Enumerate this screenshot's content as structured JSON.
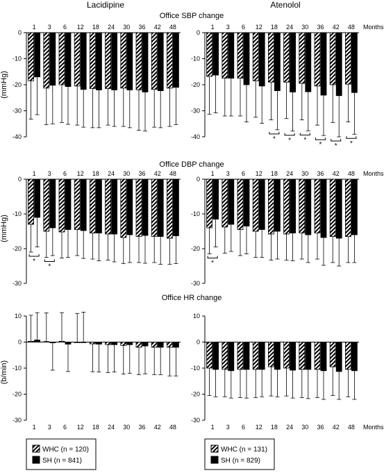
{
  "figure": {
    "columns": [
      "Lacidipine",
      "Atenolol"
    ],
    "x_unit_label": "Months",
    "whc_pattern_color": "#000000",
    "sh_color": "#000000"
  },
  "panels": [
    {
      "title": "Office SBP change",
      "ylabel": "(mmHg)"
    },
    {
      "title": "Office DBP change",
      "ylabel": "(mmHg)"
    },
    {
      "title": "Office HR change",
      "ylabel": "(b/min)"
    }
  ],
  "legends": [
    {
      "whc": "WHC (n = 120)",
      "sh": "SH (n = 841)"
    },
    {
      "whc": "WHC (n = 131)",
      "sh": "SH (n = 829)"
    }
  ],
  "chart_data": [
    {
      "type": "bar",
      "title": "Office SBP change",
      "drug": "Lacidipine",
      "categories": [
        "1",
        "3",
        "6",
        "12",
        "18",
        "24",
        "30",
        "36",
        "42",
        "48"
      ],
      "xlabel": "Months",
      "ylabel": "(mmHg)",
      "ylim": [
        -40,
        0
      ],
      "yticks": [
        0,
        -10,
        -20,
        -30,
        -40
      ],
      "series": [
        {
          "name": "WHC (n = 120)",
          "values": [
            -18.5,
            -21.3,
            -20.0,
            -20.5,
            -21.5,
            -21.5,
            -21.3,
            -22.0,
            -21.8,
            -21.3
          ],
          "sd": [
            14.7,
            14.0,
            14.5,
            15.0,
            15.0,
            14.0,
            14.7,
            15.5,
            14.5,
            14.7
          ]
        },
        {
          "name": "SH (n = 841)",
          "values": [
            -17.0,
            -20.2,
            -20.7,
            -21.8,
            -22.0,
            -22.0,
            -22.0,
            -22.8,
            -22.3,
            -21.0
          ],
          "sd": [
            14.5,
            14.8,
            14.5,
            14.5,
            14.5,
            14.0,
            14.5,
            15.0,
            14.2,
            14.3
          ]
        }
      ],
      "significant": []
    },
    {
      "type": "bar",
      "title": "Office SBP change",
      "drug": "Atenolol",
      "categories": [
        "1",
        "3",
        "6",
        "12",
        "18",
        "24",
        "30",
        "36",
        "42",
        "48"
      ],
      "xlabel": "Months",
      "ylabel": "(mmHg)",
      "ylim": [
        -40,
        0
      ],
      "yticks": [
        0,
        -10,
        -20,
        -30,
        -40
      ],
      "series": [
        {
          "name": "WHC (n = 131)",
          "values": [
            -16.8,
            -17.5,
            -17.5,
            -18.5,
            -19.0,
            -19.0,
            -19.5,
            -20.5,
            -20.0,
            -19.8
          ],
          "sd": [
            14.5,
            14.5,
            14.5,
            14.0,
            14.5,
            14.0,
            14.0,
            15.0,
            14.5,
            14.5
          ]
        },
        {
          "name": "SH (n = 829)",
          "values": [
            -16.3,
            -17.5,
            -20.0,
            -20.5,
            -22.3,
            -22.8,
            -22.7,
            -24.0,
            -24.2,
            -23.0
          ],
          "sd": [
            14.5,
            14.5,
            14.3,
            14.3,
            15.0,
            15.0,
            15.0,
            15.5,
            15.8,
            16.0
          ]
        }
      ],
      "significant": [
        "18",
        "24",
        "30",
        "36",
        "42",
        "48"
      ]
    },
    {
      "type": "bar",
      "title": "Office DBP change",
      "drug": "Lacidipine",
      "categories": [
        "1",
        "3",
        "6",
        "12",
        "18",
        "24",
        "30",
        "36",
        "42",
        "48"
      ],
      "xlabel": "Months",
      "ylabel": "(mmHg)",
      "ylim": [
        -30,
        0
      ],
      "yticks": [
        0,
        -10,
        -20,
        -30
      ],
      "series": [
        {
          "name": "WHC (n = 120)",
          "values": [
            -13.0,
            -15.0,
            -15.2,
            -14.5,
            -15.5,
            -15.8,
            -16.8,
            -16.5,
            -16.5,
            -17.0
          ],
          "sd": [
            8.0,
            7.5,
            7.5,
            7.5,
            7.5,
            7.5,
            7.5,
            7.5,
            7.5,
            7.5
          ]
        },
        {
          "name": "SH (n = 841)",
          "values": [
            -11.0,
            -14.0,
            -14.5,
            -14.8,
            -15.5,
            -15.8,
            -16.0,
            -16.2,
            -16.5,
            -16.3
          ],
          "sd": [
            8.5,
            8.0,
            8.0,
            8.0,
            8.0,
            8.0,
            8.0,
            8.0,
            8.0,
            8.0
          ]
        }
      ],
      "significant": [
        "1",
        "3"
      ]
    },
    {
      "type": "bar",
      "title": "Office DBP change",
      "drug": "Atenolol",
      "categories": [
        "1",
        "3",
        "6",
        "12",
        "18",
        "24",
        "30",
        "36",
        "42",
        "48"
      ],
      "xlabel": "Months",
      "ylabel": "(mmHg)",
      "ylim": [
        -30,
        0
      ],
      "yticks": [
        0,
        -10,
        -20,
        -30
      ],
      "series": [
        {
          "name": "WHC (n = 131)",
          "values": [
            -14.0,
            -13.8,
            -14.5,
            -15.0,
            -15.8,
            -15.8,
            -15.5,
            -15.5,
            -16.5,
            -16.5
          ],
          "sd": [
            7.5,
            7.5,
            7.5,
            7.5,
            7.5,
            7.5,
            7.5,
            7.5,
            7.5,
            7.5
          ]
        },
        {
          "name": "SH (n = 829)",
          "values": [
            -11.5,
            -13.0,
            -13.5,
            -14.5,
            -15.0,
            -15.5,
            -16.0,
            -16.8,
            -17.0,
            -16.0
          ],
          "sd": [
            8.0,
            7.8,
            8.0,
            8.0,
            8.0,
            8.0,
            8.0,
            8.0,
            8.0,
            8.0
          ]
        }
      ],
      "significant": [
        "1"
      ]
    },
    {
      "type": "bar",
      "title": "Office HR change",
      "drug": "Lacidipine",
      "categories": [
        "1",
        "3",
        "6",
        "12",
        "18",
        "24",
        "30",
        "36",
        "42",
        "48"
      ],
      "xlabel": "Months",
      "ylabel": "(b/min)",
      "ylim": [
        -30,
        10
      ],
      "yticks": [
        10,
        0,
        -10,
        -20,
        -30
      ],
      "series": [
        {
          "name": "WHC (n = 120)",
          "values": [
            0.3,
            0.2,
            0.3,
            0.0,
            -0.7,
            -1.0,
            -1.3,
            -2.0,
            -2.0,
            -2.0
          ],
          "sd": [
            10.0,
            11.0,
            11.0,
            11.0,
            10.7,
            10.7,
            11.0,
            10.5,
            10.5,
            11.0
          ]
        },
        {
          "name": "SH (n = 841)",
          "values": [
            0.8,
            -0.3,
            -0.8,
            0.0,
            -0.8,
            -1.0,
            -1.0,
            -1.5,
            -2.0,
            -2.0
          ],
          "sd": [
            10.5,
            10.5,
            10.5,
            11.5,
            10.7,
            10.5,
            11.0,
            10.7,
            10.5,
            11.0
          ]
        }
      ],
      "significant": []
    },
    {
      "type": "bar",
      "title": "Office HR change",
      "drug": "Atenolol",
      "categories": [
        "1",
        "3",
        "6",
        "12",
        "18",
        "24",
        "30",
        "36",
        "42",
        "48"
      ],
      "xlabel": "Months",
      "ylabel": "(b/min)",
      "ylim": [
        -30,
        10
      ],
      "yticks": [
        10,
        0,
        -10,
        -20,
        -30
      ],
      "series": [
        {
          "name": "WHC (n = 131)",
          "values": [
            -10.0,
            -10.5,
            -10.5,
            -10.5,
            -9.5,
            -10.0,
            -10.5,
            -10.5,
            -9.5,
            -10.5
          ],
          "sd": [
            10.5,
            10.5,
            10.8,
            10.8,
            11.2,
            10.7,
            10.8,
            10.8,
            11.0,
            10.5
          ]
        },
        {
          "name": "SH (n = 829)",
          "values": [
            -10.5,
            -11.0,
            -10.5,
            -10.5,
            -10.5,
            -10.8,
            -10.5,
            -11.0,
            -11.3,
            -11.0
          ],
          "sd": [
            10.5,
            10.5,
            11.0,
            10.5,
            10.5,
            10.7,
            11.2,
            11.0,
            10.7,
            11.0
          ]
        }
      ],
      "significant": []
    }
  ]
}
